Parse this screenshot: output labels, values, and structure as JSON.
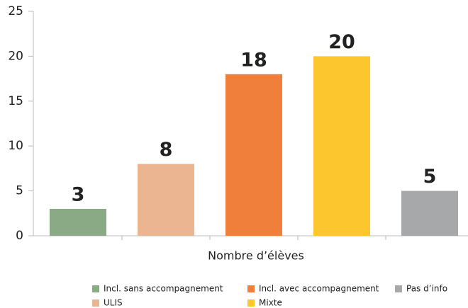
{
  "chart_data": {
    "type": "bar",
    "x_label": "Nombre d’élèves",
    "categories": [
      "Incl. sans accompagnement",
      "ULIS",
      "Incl. avec accompagnement",
      "Mixte",
      "Pas d’info"
    ],
    "values": [
      3,
      8,
      18,
      20,
      5
    ],
    "colors": [
      "#8aaa86",
      "#ebb592",
      "#f07f3c",
      "#fcc72e",
      "#a7a8aa"
    ],
    "ylim": [
      0,
      25
    ],
    "yticks": [
      0,
      5,
      10,
      15,
      20,
      25
    ],
    "grid": false,
    "legend": "bottom"
  }
}
